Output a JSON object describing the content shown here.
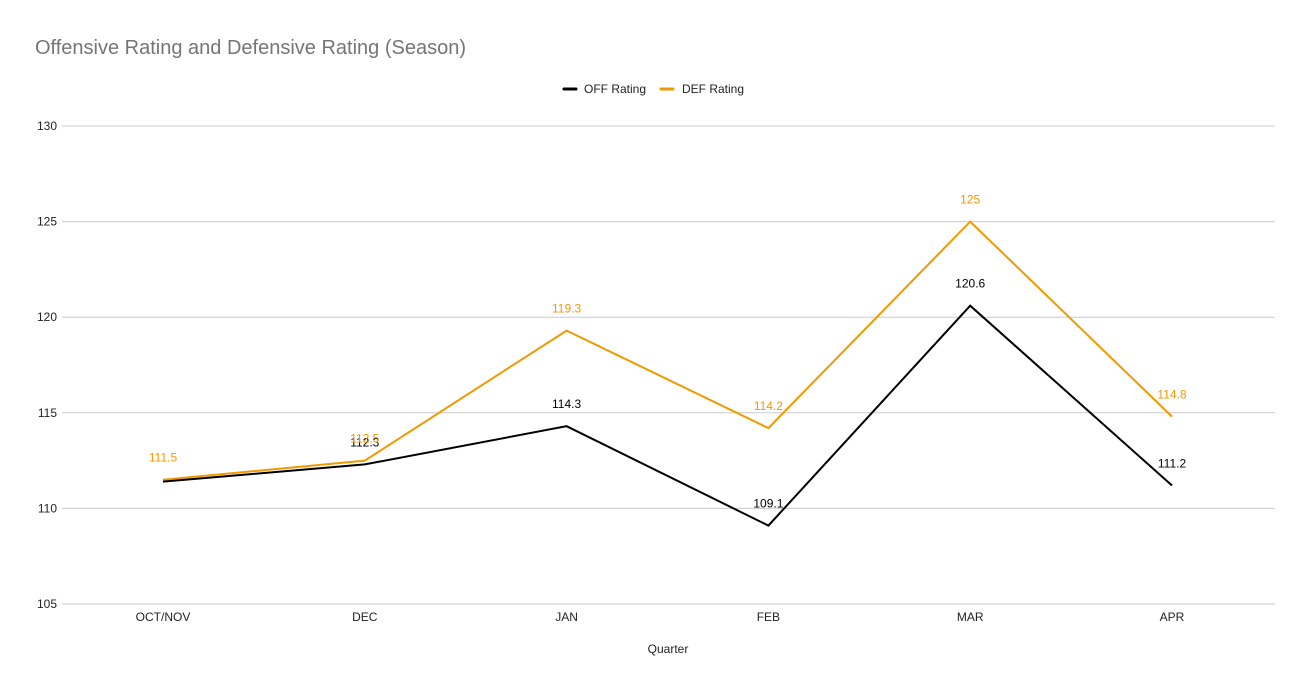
{
  "chart_data": {
    "type": "line",
    "title": "Offensive Rating and Defensive Rating (Season)",
    "xlabel": "Quarter",
    "ylabel": "",
    "categories": [
      "OCT/NOV",
      "DEC",
      "JAN",
      "FEB",
      "MAR",
      "APR"
    ],
    "ylim": [
      105,
      130
    ],
    "yticks": [
      105,
      110,
      115,
      120,
      125,
      130
    ],
    "grid": true,
    "legend_position": "top-center",
    "series": [
      {
        "name": "OFF Rating",
        "color": "#000000",
        "values": [
          111.4,
          112.3,
          114.3,
          109.1,
          120.6,
          111.2
        ],
        "labels": [
          "",
          "112.3",
          "114.3",
          "109.1",
          "120.6",
          "111.2"
        ]
      },
      {
        "name": "DEF Rating",
        "color": "#f29900",
        "values": [
          111.5,
          112.5,
          119.3,
          114.2,
          125,
          114.8
        ],
        "labels": [
          "111.5",
          "112.5",
          "119.3",
          "114.2",
          "125",
          "114.8"
        ]
      }
    ]
  }
}
